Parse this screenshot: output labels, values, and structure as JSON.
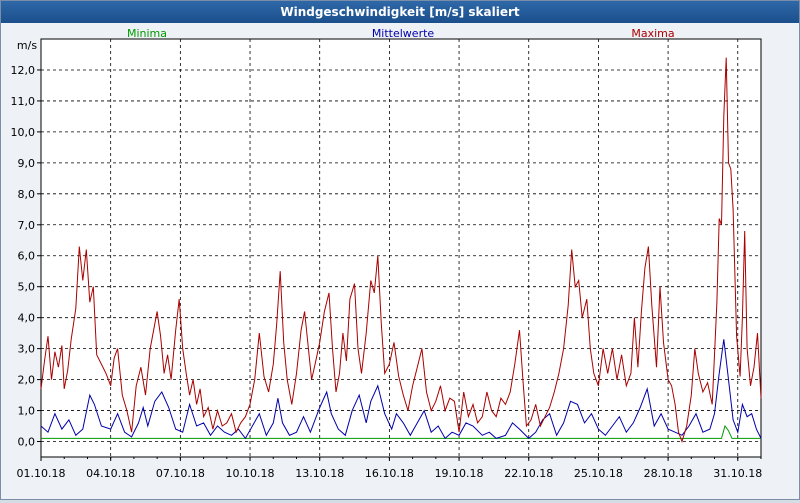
{
  "window": {
    "title": "Windgeschwindigkeit [m/s] skaliert"
  },
  "chart_data": {
    "type": "line",
    "title": "Windgeschwindigkeit [m/s] skaliert",
    "ylabel": "m/s",
    "xlabel": "",
    "ylim": [
      -0.5,
      13.0
    ],
    "xlim": [
      0,
      31
    ],
    "grid": true,
    "legend_position": "top",
    "y_ticks": [
      "0,0",
      "1,0",
      "2,0",
      "3,0",
      "4,0",
      "5,0",
      "6,0",
      "7,0",
      "8,0",
      "9,0",
      "10,0",
      "11,0",
      "12,0"
    ],
    "x_ticks": [
      "01.10.18",
      "04.10.18",
      "07.10.18",
      "10.10.18",
      "13.10.18",
      "16.10.18",
      "19.10.18",
      "22.10.18",
      "25.10.18",
      "28.10.18",
      "31.10.18"
    ],
    "x_tick_days": [
      0,
      3,
      6,
      9,
      12,
      15,
      18,
      21,
      24,
      27,
      30
    ],
    "series": [
      {
        "name": "Minima",
        "color": "#009900",
        "points": [
          [
            0,
            0.1
          ],
          [
            29.3,
            0.1
          ],
          [
            29.45,
            0.5
          ],
          [
            29.6,
            0.35
          ],
          [
            29.75,
            0.1
          ],
          [
            31,
            0.1
          ]
        ]
      },
      {
        "name": "Mittelwerte",
        "color": "#0000aa",
        "points": [
          [
            0,
            0.5
          ],
          [
            0.3,
            0.3
          ],
          [
            0.6,
            0.9
          ],
          [
            0.9,
            0.4
          ],
          [
            1.2,
            0.7
          ],
          [
            1.5,
            0.2
          ],
          [
            1.8,
            0.4
          ],
          [
            2.1,
            1.5
          ],
          [
            2.3,
            1.2
          ],
          [
            2.6,
            0.5
          ],
          [
            3.0,
            0.4
          ],
          [
            3.3,
            0.9
          ],
          [
            3.6,
            0.3
          ],
          [
            3.9,
            0.15
          ],
          [
            4.2,
            0.6
          ],
          [
            4.4,
            1.1
          ],
          [
            4.6,
            0.5
          ],
          [
            4.9,
            1.3
          ],
          [
            5.2,
            1.6
          ],
          [
            5.5,
            1.1
          ],
          [
            5.8,
            0.4
          ],
          [
            6.1,
            0.3
          ],
          [
            6.4,
            1.2
          ],
          [
            6.7,
            0.5
          ],
          [
            7.0,
            0.6
          ],
          [
            7.3,
            0.2
          ],
          [
            7.6,
            0.5
          ],
          [
            7.9,
            0.3
          ],
          [
            8.2,
            0.2
          ],
          [
            8.5,
            0.4
          ],
          [
            8.8,
            0.1
          ],
          [
            9.1,
            0.5
          ],
          [
            9.4,
            0.9
          ],
          [
            9.7,
            0.2
          ],
          [
            10.0,
            0.6
          ],
          [
            10.2,
            1.4
          ],
          [
            10.4,
            0.6
          ],
          [
            10.7,
            0.2
          ],
          [
            11.0,
            0.3
          ],
          [
            11.3,
            0.8
          ],
          [
            11.6,
            0.3
          ],
          [
            12.0,
            1.1
          ],
          [
            12.3,
            1.6
          ],
          [
            12.5,
            0.9
          ],
          [
            12.8,
            0.4
          ],
          [
            13.1,
            0.2
          ],
          [
            13.4,
            1.0
          ],
          [
            13.7,
            1.5
          ],
          [
            14.0,
            0.6
          ],
          [
            14.2,
            1.3
          ],
          [
            14.5,
            1.8
          ],
          [
            14.8,
            0.9
          ],
          [
            15.1,
            0.4
          ],
          [
            15.3,
            0.9
          ],
          [
            15.6,
            0.6
          ],
          [
            15.9,
            0.2
          ],
          [
            16.2,
            0.6
          ],
          [
            16.5,
            1.0
          ],
          [
            16.8,
            0.3
          ],
          [
            17.1,
            0.5
          ],
          [
            17.4,
            0.1
          ],
          [
            17.7,
            0.3
          ],
          [
            18.0,
            0.2
          ],
          [
            18.3,
            0.6
          ],
          [
            18.6,
            0.5
          ],
          [
            19.0,
            0.2
          ],
          [
            19.3,
            0.3
          ],
          [
            19.6,
            0.1
          ],
          [
            20.0,
            0.2
          ],
          [
            20.3,
            0.6
          ],
          [
            20.6,
            0.4
          ],
          [
            21.0,
            0.1
          ],
          [
            21.3,
            0.3
          ],
          [
            21.6,
            0.7
          ],
          [
            21.9,
            0.9
          ],
          [
            22.2,
            0.2
          ],
          [
            22.5,
            0.6
          ],
          [
            22.8,
            1.3
          ],
          [
            23.1,
            1.2
          ],
          [
            23.4,
            0.6
          ],
          [
            23.7,
            0.9
          ],
          [
            24.0,
            0.4
          ],
          [
            24.3,
            0.2
          ],
          [
            24.6,
            0.5
          ],
          [
            24.9,
            0.8
          ],
          [
            25.2,
            0.3
          ],
          [
            25.5,
            0.6
          ],
          [
            25.8,
            1.1
          ],
          [
            26.1,
            1.7
          ],
          [
            26.4,
            0.5
          ],
          [
            26.7,
            0.9
          ],
          [
            27.0,
            0.4
          ],
          [
            27.3,
            0.3
          ],
          [
            27.6,
            0.2
          ],
          [
            27.9,
            0.5
          ],
          [
            28.2,
            0.9
          ],
          [
            28.5,
            0.3
          ],
          [
            28.8,
            0.4
          ],
          [
            29.0,
            0.9
          ],
          [
            29.2,
            2.2
          ],
          [
            29.4,
            3.3
          ],
          [
            29.6,
            2.0
          ],
          [
            29.8,
            0.7
          ],
          [
            30.0,
            0.3
          ],
          [
            30.2,
            1.2
          ],
          [
            30.4,
            0.8
          ],
          [
            30.6,
            0.9
          ],
          [
            30.8,
            0.4
          ],
          [
            31.0,
            0.1
          ]
        ]
      },
      {
        "name": "Maxima",
        "color": "#aa0000",
        "points": [
          [
            0,
            1.7
          ],
          [
            0.15,
            2.6
          ],
          [
            0.3,
            3.4
          ],
          [
            0.45,
            2.0
          ],
          [
            0.6,
            2.9
          ],
          [
            0.75,
            2.4
          ],
          [
            0.9,
            3.1
          ],
          [
            1.0,
            1.7
          ],
          [
            1.15,
            2.3
          ],
          [
            1.3,
            3.3
          ],
          [
            1.5,
            4.3
          ],
          [
            1.65,
            6.3
          ],
          [
            1.8,
            5.2
          ],
          [
            1.95,
            6.2
          ],
          [
            2.1,
            4.5
          ],
          [
            2.25,
            5.0
          ],
          [
            2.4,
            2.8
          ],
          [
            2.6,
            2.5
          ],
          [
            2.8,
            2.2
          ],
          [
            3.0,
            1.8
          ],
          [
            3.15,
            2.7
          ],
          [
            3.3,
            3.0
          ],
          [
            3.5,
            1.5
          ],
          [
            3.7,
            1.0
          ],
          [
            3.9,
            0.3
          ],
          [
            4.1,
            1.8
          ],
          [
            4.3,
            2.4
          ],
          [
            4.5,
            1.5
          ],
          [
            4.7,
            3.0
          ],
          [
            4.9,
            3.8
          ],
          [
            5.0,
            4.2
          ],
          [
            5.15,
            3.4
          ],
          [
            5.3,
            2.2
          ],
          [
            5.45,
            2.8
          ],
          [
            5.6,
            2.0
          ],
          [
            5.8,
            3.6
          ],
          [
            5.95,
            4.6
          ],
          [
            6.1,
            3.0
          ],
          [
            6.25,
            2.2
          ],
          [
            6.4,
            1.5
          ],
          [
            6.55,
            2.0
          ],
          [
            6.7,
            1.2
          ],
          [
            6.85,
            1.7
          ],
          [
            7.0,
            0.8
          ],
          [
            7.2,
            1.1
          ],
          [
            7.4,
            0.4
          ],
          [
            7.6,
            1.0
          ],
          [
            7.8,
            0.5
          ],
          [
            8.0,
            0.6
          ],
          [
            8.2,
            0.9
          ],
          [
            8.4,
            0.3
          ],
          [
            8.6,
            0.6
          ],
          [
            8.8,
            0.8
          ],
          [
            9.0,
            1.2
          ],
          [
            9.2,
            2.0
          ],
          [
            9.4,
            3.5
          ],
          [
            9.6,
            2.1
          ],
          [
            9.8,
            1.6
          ],
          [
            10.0,
            2.5
          ],
          [
            10.15,
            3.8
          ],
          [
            10.3,
            5.5
          ],
          [
            10.45,
            3.2
          ],
          [
            10.6,
            2.0
          ],
          [
            10.8,
            1.2
          ],
          [
            11.0,
            2.2
          ],
          [
            11.2,
            3.6
          ],
          [
            11.35,
            4.2
          ],
          [
            11.5,
            3.1
          ],
          [
            11.65,
            2.0
          ],
          [
            11.8,
            2.5
          ],
          [
            12.0,
            3.2
          ],
          [
            12.2,
            4.2
          ],
          [
            12.4,
            4.8
          ],
          [
            12.55,
            3.0
          ],
          [
            12.7,
            1.6
          ],
          [
            12.85,
            2.2
          ],
          [
            13.0,
            3.5
          ],
          [
            13.15,
            2.6
          ],
          [
            13.3,
            4.6
          ],
          [
            13.5,
            5.1
          ],
          [
            13.65,
            3.0
          ],
          [
            13.8,
            2.2
          ],
          [
            14.0,
            3.5
          ],
          [
            14.2,
            5.2
          ],
          [
            14.35,
            4.8
          ],
          [
            14.5,
            6.0
          ],
          [
            14.65,
            3.8
          ],
          [
            14.8,
            2.2
          ],
          [
            15.0,
            2.5
          ],
          [
            15.2,
            3.2
          ],
          [
            15.4,
            2.1
          ],
          [
            15.6,
            1.5
          ],
          [
            15.8,
            1.0
          ],
          [
            16.0,
            1.8
          ],
          [
            16.2,
            2.4
          ],
          [
            16.4,
            3.0
          ],
          [
            16.6,
            1.6
          ],
          [
            16.8,
            1.0
          ],
          [
            17.0,
            1.3
          ],
          [
            17.2,
            1.8
          ],
          [
            17.4,
            1.0
          ],
          [
            17.6,
            1.4
          ],
          [
            17.8,
            1.3
          ],
          [
            18.0,
            0.3
          ],
          [
            18.2,
            1.6
          ],
          [
            18.4,
            0.8
          ],
          [
            18.6,
            1.2
          ],
          [
            18.8,
            0.6
          ],
          [
            19.0,
            0.8
          ],
          [
            19.2,
            1.6
          ],
          [
            19.4,
            1.0
          ],
          [
            19.6,
            0.8
          ],
          [
            19.8,
            1.4
          ],
          [
            20.0,
            1.2
          ],
          [
            20.2,
            1.6
          ],
          [
            20.4,
            2.5
          ],
          [
            20.6,
            3.6
          ],
          [
            20.75,
            2.0
          ],
          [
            20.9,
            0.5
          ],
          [
            21.1,
            0.7
          ],
          [
            21.3,
            1.2
          ],
          [
            21.5,
            0.5
          ],
          [
            21.7,
            0.8
          ],
          [
            21.9,
            1.1
          ],
          [
            22.1,
            1.6
          ],
          [
            22.3,
            2.2
          ],
          [
            22.5,
            3.0
          ],
          [
            22.7,
            4.4
          ],
          [
            22.85,
            6.2
          ],
          [
            23.0,
            5.0
          ],
          [
            23.15,
            5.2
          ],
          [
            23.3,
            4.0
          ],
          [
            23.5,
            4.6
          ],
          [
            23.65,
            3.0
          ],
          [
            23.8,
            2.2
          ],
          [
            24.0,
            1.8
          ],
          [
            24.2,
            3.0
          ],
          [
            24.4,
            2.2
          ],
          [
            24.6,
            3.0
          ],
          [
            24.8,
            2.0
          ],
          [
            25.0,
            2.8
          ],
          [
            25.2,
            1.8
          ],
          [
            25.4,
            2.2
          ],
          [
            25.55,
            4.0
          ],
          [
            25.7,
            2.4
          ],
          [
            25.85,
            4.2
          ],
          [
            26.0,
            5.6
          ],
          [
            26.15,
            6.3
          ],
          [
            26.3,
            4.4
          ],
          [
            26.5,
            2.4
          ],
          [
            26.65,
            5.0
          ],
          [
            26.8,
            3.2
          ],
          [
            27.0,
            2.0
          ],
          [
            27.15,
            1.8
          ],
          [
            27.3,
            1.2
          ],
          [
            27.45,
            0.3
          ],
          [
            27.6,
            0.0
          ],
          [
            27.8,
            0.5
          ],
          [
            28.0,
            1.5
          ],
          [
            28.15,
            3.0
          ],
          [
            28.3,
            2.2
          ],
          [
            28.5,
            1.6
          ],
          [
            28.7,
            1.9
          ],
          [
            28.9,
            1.2
          ],
          [
            29.0,
            2.8
          ],
          [
            29.1,
            4.5
          ],
          [
            29.2,
            7.2
          ],
          [
            29.3,
            7.0
          ],
          [
            29.4,
            10.5
          ],
          [
            29.5,
            12.4
          ],
          [
            29.6,
            9.0
          ],
          [
            29.7,
            8.8
          ],
          [
            29.8,
            7.5
          ],
          [
            29.95,
            3.4
          ],
          [
            30.1,
            2.1
          ],
          [
            30.2,
            4.0
          ],
          [
            30.3,
            6.8
          ],
          [
            30.4,
            3.0
          ],
          [
            30.55,
            1.8
          ],
          [
            30.7,
            2.4
          ],
          [
            30.85,
            3.5
          ],
          [
            31.0,
            1.4
          ]
        ]
      }
    ]
  }
}
